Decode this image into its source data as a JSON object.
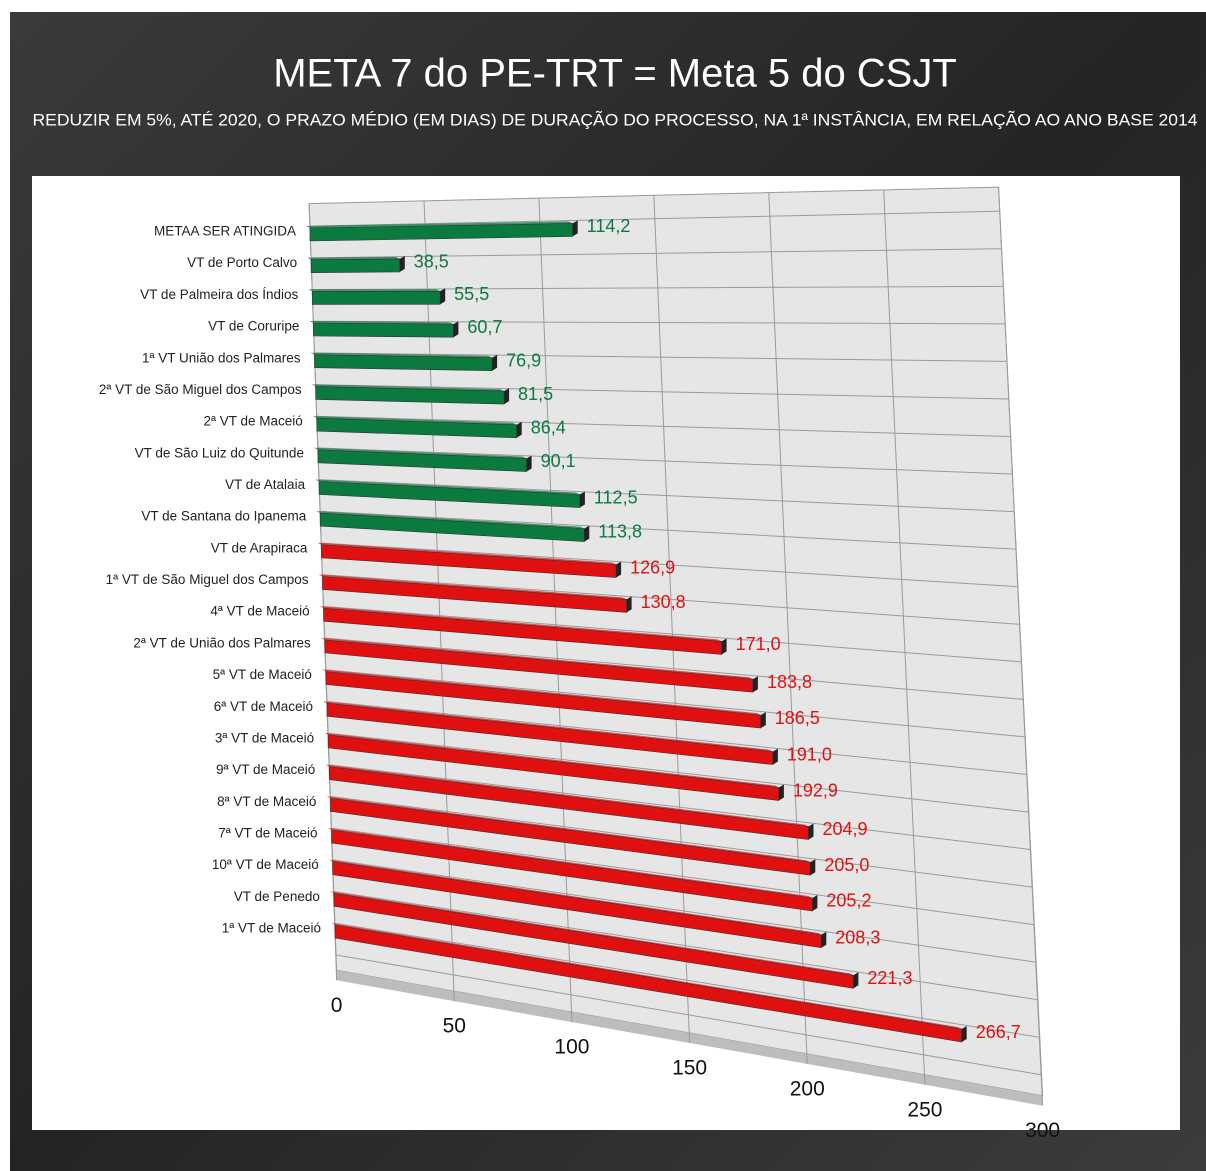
{
  "chart_data": {
    "type": "bar3d",
    "title": "META 7 do PE-TRT = Meta 5 do CSJT",
    "subtitle": "REDUZIR EM 5%, ATÉ 2020, O PRAZO MÉDIO (EM DIAS) DE DURAÇÃO DO PROCESSO, NA 1ª INSTÂNCIA, EM RELAÇÃO AO ANO BASE 2014",
    "categories": [
      "METAA SER ATINGIDA",
      "VT de Porto Calvo",
      "VT de Palmeira dos Índios",
      "VT de Coruripe",
      "1ª VT União dos Palmares",
      "2ª VT de São Miguel dos Campos",
      "2ª VT de Maceió",
      "VT de São Luiz do Quitunde",
      "VT de Atalaia",
      "VT de Santana do Ipanema",
      "VT de Arapiraca",
      "1ª VT de São Miguel dos Campos",
      "4ª VT de Maceió",
      "2ª VT de União dos Palmares",
      "5ª VT de Maceió",
      "6ª VT de Maceió",
      "3ª VT de Maceió",
      "9ª VT de Maceió",
      "8ª VT de Maceió",
      "7ª VT de Maceió",
      "10ª VT de Maceió",
      "VT de Penedo",
      "1ª VT de Maceió"
    ],
    "values": [
      114.2,
      38.5,
      55.5,
      60.7,
      76.9,
      81.5,
      86.4,
      90.1,
      112.5,
      113.8,
      126.9,
      130.8,
      171.0,
      183.8,
      186.5,
      191.0,
      192.9,
      204.9,
      205.0,
      205.2,
      208.3,
      221.3,
      266.7
    ],
    "value_labels": [
      "114,2",
      "38,5",
      "55,5",
      "60,7",
      "76,9",
      "81,5",
      "86,4",
      "90,1",
      "112,5",
      "113,8",
      "126,9",
      "130,8",
      "171,0",
      "183,8",
      "186,5",
      "191,0",
      "192,9",
      "204,9",
      "205,0",
      "205,2",
      "208,3",
      "221,3",
      "266,7"
    ],
    "colors": [
      "#0b7a3e",
      "#0b7a3e",
      "#0b7a3e",
      "#0b7a3e",
      "#0b7a3e",
      "#0b7a3e",
      "#0b7a3e",
      "#0b7a3e",
      "#0b7a3e",
      "#0b7a3e",
      "#e01010",
      "#e01010",
      "#e01010",
      "#e01010",
      "#e01010",
      "#e01010",
      "#e01010",
      "#e01010",
      "#e01010",
      "#e01010",
      "#e01010",
      "#e01010",
      "#e01010"
    ],
    "xlim": [
      0,
      300
    ],
    "xticks": [
      0,
      50,
      100,
      150,
      200,
      250,
      300
    ],
    "grid": true
  }
}
